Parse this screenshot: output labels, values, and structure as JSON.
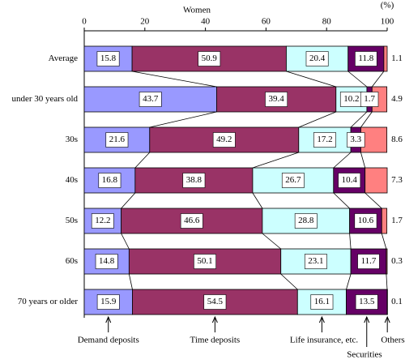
{
  "chart_data": {
    "type": "bar",
    "orientation": "horizontal",
    "stacked": true,
    "title": "Women",
    "unit_label": "(%)",
    "categories": [
      "Average",
      "under 30 years old",
      "30s",
      "40s",
      "50s",
      "60s",
      "70 years or older"
    ],
    "series": [
      {
        "name": "Demand deposits",
        "color": "#9999ff",
        "values": [
          15.8,
          43.7,
          21.6,
          16.8,
          12.2,
          14.8,
          15.9
        ]
      },
      {
        "name": "Time deposits",
        "color": "#993366",
        "values": [
          50.9,
          39.4,
          49.2,
          38.8,
          46.6,
          50.1,
          54.5
        ]
      },
      {
        "name": "Life insurance, etc.",
        "color": "#ccffff",
        "values": [
          20.4,
          10.2,
          17.2,
          26.7,
          28.8,
          23.1,
          16.1
        ]
      },
      {
        "name": "Securities",
        "color": "#660066",
        "values": [
          11.8,
          1.7,
          3.3,
          10.4,
          10.6,
          11.7,
          13.5
        ]
      },
      {
        "name": "Others",
        "color": "#ff8080",
        "values": [
          1.1,
          4.9,
          8.6,
          7.3,
          1.7,
          0.3,
          0.1
        ]
      }
    ],
    "xlim": [
      0,
      100
    ],
    "xticks": [
      0,
      20,
      40,
      60,
      80,
      100
    ]
  }
}
